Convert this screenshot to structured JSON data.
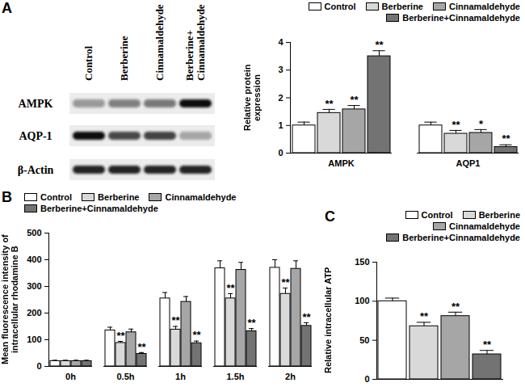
{
  "chart_data": [
    {
      "type": "bar",
      "panel": "A",
      "y_label": "Relative protein expression",
      "categories": [
        "AMPK",
        "AQP1"
      ],
      "ylim": [
        0,
        4
      ],
      "yticks": [
        0,
        1,
        2,
        3,
        4
      ],
      "grid": false,
      "legend": "top right",
      "series": [
        {
          "name": "Control",
          "color": "#ffffff",
          "values": [
            1.0,
            1.0
          ],
          "errors": [
            0.12,
            0.12
          ],
          "annotations": [
            null,
            null
          ]
        },
        {
          "name": "Berberine",
          "color": "#d9d9d9",
          "values": [
            1.45,
            0.7
          ],
          "errors": [
            0.13,
            0.12
          ],
          "annotations": [
            "**",
            "**"
          ]
        },
        {
          "name": "Cinnamaldehyde",
          "color": "#a6a6a6",
          "values": [
            1.58,
            0.73
          ],
          "errors": [
            0.14,
            0.12
          ],
          "annotations": [
            "**",
            "*"
          ]
        },
        {
          "name": "Berberine+Cinnamaldehyde",
          "color": "#737373",
          "values": [
            3.5,
            0.22
          ],
          "errors": [
            0.2,
            0.08
          ],
          "annotations": [
            "**",
            "**"
          ]
        }
      ]
    },
    {
      "type": "bar",
      "panel": "B",
      "y_label": "Mean fluorescence intensity of intracellular rhodamine B",
      "categories": [
        "0h",
        "0.5h",
        "1h",
        "1.5h",
        "2h"
      ],
      "ylim": [
        0,
        500
      ],
      "yticks": [
        0,
        100,
        200,
        300,
        400,
        500
      ],
      "grid": false,
      "legend": "top left",
      "series": [
        {
          "name": "Control",
          "color": "#ffffff",
          "values": [
            20,
            135,
            255,
            368,
            370
          ],
          "errors": [
            3,
            12,
            22,
            28,
            30
          ],
          "annotations": [
            null,
            null,
            null,
            null,
            null
          ]
        },
        {
          "name": "Berberine",
          "color": "#d9d9d9",
          "values": [
            20,
            88,
            138,
            255,
            272
          ],
          "errors": [
            3,
            6,
            12,
            18,
            22
          ],
          "annotations": [
            null,
            "**",
            "**",
            "**",
            "**"
          ]
        },
        {
          "name": "Cinnamaldehyde",
          "color": "#a6a6a6",
          "values": [
            20,
            128,
            242,
            362,
            366
          ],
          "errors": [
            3,
            12,
            20,
            28,
            30
          ],
          "annotations": [
            null,
            null,
            null,
            null,
            null
          ]
        },
        {
          "name": "Berberine+Cinnamaldehyde",
          "color": "#737373",
          "values": [
            20,
            47,
            87,
            132,
            152
          ],
          "errors": [
            3,
            5,
            8,
            10,
            12
          ],
          "annotations": [
            null,
            "**",
            "**",
            "**",
            "**"
          ]
        }
      ]
    },
    {
      "type": "bar",
      "panel": "C",
      "y_label": "Relative intracellular ATP",
      "categories": [
        null
      ],
      "ylim": [
        0,
        150
      ],
      "yticks": [
        0,
        50,
        100,
        150
      ],
      "grid": false,
      "legend": "top right",
      "series": [
        {
          "name": "Control",
          "color": "#ffffff",
          "values": [
            100
          ],
          "errors": [
            4
          ],
          "annotations": [
            null
          ]
        },
        {
          "name": "Berberine",
          "color": "#d9d9d9",
          "values": [
            68
          ],
          "errors": [
            5
          ],
          "annotations": [
            "**"
          ]
        },
        {
          "name": "Cinnamaldehyde",
          "color": "#a6a6a6",
          "values": [
            81
          ],
          "errors": [
            5
          ],
          "annotations": [
            "**"
          ]
        },
        {
          "name": "Berberine+Cinnamaldehyde",
          "color": "#737373",
          "values": [
            32
          ],
          "errors": [
            5
          ],
          "annotations": [
            "**"
          ]
        }
      ]
    }
  ],
  "blot": {
    "lanes": [
      "Control",
      "Berberine",
      "Cinnamaldehyde",
      "Berberine+Cinnamaldehyde"
    ],
    "proteins": [
      "AMPK",
      "AQP-1",
      "β-Actin"
    ]
  }
}
